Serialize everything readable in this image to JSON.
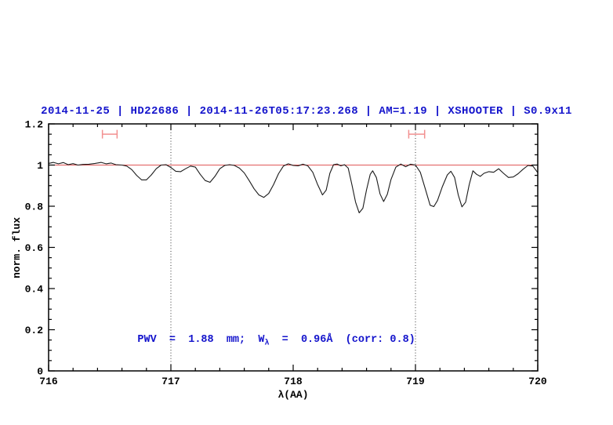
{
  "colors": {
    "accent_blue": "#1414cc",
    "continuum_red": "#e05858",
    "marker_salmon": "#f29090",
    "curve_black": "#1b1b1b"
  },
  "chart_data": {
    "type": "line",
    "title": "2014-11-25 | HD22686 | 2014-11-26T05:17:23.268 | AM=1.19 | XSHOOTER | S0.9x11",
    "xlabel": "λ(AA)",
    "ylabel": "norm. flux",
    "xlim": [
      716,
      720
    ],
    "ylim": [
      0,
      1.2
    ],
    "x_major_ticks": [
      716,
      717,
      718,
      719,
      720
    ],
    "x_major_labels": [
      "716",
      "717",
      "718",
      "719",
      "720"
    ],
    "x_minor_step": 0.2,
    "y_major_ticks": [
      0,
      0.2,
      0.4,
      0.6,
      0.8,
      1.0,
      1.2
    ],
    "y_major_labels": [
      "0",
      "0.2",
      "0.4",
      "0.6",
      "0.8",
      "1",
      "1.2"
    ],
    "y_minor_step": 0.05,
    "grid": false,
    "legend": false,
    "reference_line": {
      "y": 1.0,
      "color": "#e05858"
    },
    "dotted_lines_x": [
      717,
      719
    ],
    "band_markers": [
      {
        "x_center": 716.5,
        "half_width": 0.06,
        "y": 1.15,
        "color": "#f29090"
      },
      {
        "x_center": 719.01,
        "half_width": 0.065,
        "y": 1.15,
        "color": "#f29090"
      }
    ],
    "annotation": {
      "pre": "PWV  =  1.88  mm;  W",
      "sub": "λ",
      "post": "  =  0.96Å  (corr: 0.8)",
      "x": 716.52,
      "y": 0.2,
      "color": "#1414cc"
    },
    "series": [
      {
        "name": "spectrum",
        "color": "#1b1b1b",
        "points": [
          [
            716.0,
            1.008
          ],
          [
            716.04,
            1.013
          ],
          [
            716.08,
            1.006
          ],
          [
            716.12,
            1.012
          ],
          [
            716.16,
            1.002
          ],
          [
            716.2,
            1.007
          ],
          [
            716.24,
            1.0
          ],
          [
            716.28,
            1.003
          ],
          [
            716.33,
            1.004
          ],
          [
            716.38,
            1.008
          ],
          [
            716.43,
            1.013
          ],
          [
            716.47,
            1.006
          ],
          [
            716.51,
            1.01
          ],
          [
            716.55,
            1.002
          ],
          [
            716.6,
            1.0
          ],
          [
            716.64,
            0.995
          ],
          [
            716.68,
            0.978
          ],
          [
            716.72,
            0.95
          ],
          [
            716.76,
            0.928
          ],
          [
            716.8,
            0.928
          ],
          [
            716.84,
            0.952
          ],
          [
            716.88,
            0.982
          ],
          [
            716.92,
            1.0
          ],
          [
            716.96,
            1.002
          ],
          [
            717.0,
            0.988
          ],
          [
            717.04,
            0.97
          ],
          [
            717.08,
            0.968
          ],
          [
            717.12,
            0.982
          ],
          [
            717.16,
            0.995
          ],
          [
            717.2,
            0.99
          ],
          [
            717.24,
            0.955
          ],
          [
            717.28,
            0.925
          ],
          [
            717.32,
            0.916
          ],
          [
            717.36,
            0.945
          ],
          [
            717.4,
            0.982
          ],
          [
            717.44,
            0.998
          ],
          [
            717.48,
            1.002
          ],
          [
            717.52,
            0.998
          ],
          [
            717.56,
            0.985
          ],
          [
            717.6,
            0.962
          ],
          [
            717.64,
            0.925
          ],
          [
            717.68,
            0.885
          ],
          [
            717.72,
            0.855
          ],
          [
            717.76,
            0.843
          ],
          [
            717.8,
            0.862
          ],
          [
            717.84,
            0.905
          ],
          [
            717.88,
            0.958
          ],
          [
            717.92,
            0.995
          ],
          [
            717.96,
            1.006
          ],
          [
            718.0,
            0.998
          ],
          [
            718.04,
            0.996
          ],
          [
            718.08,
            1.004
          ],
          [
            718.12,
            0.996
          ],
          [
            718.16,
            0.965
          ],
          [
            718.2,
            0.905
          ],
          [
            718.24,
            0.855
          ],
          [
            718.27,
            0.878
          ],
          [
            718.3,
            0.96
          ],
          [
            718.33,
            1.002
          ],
          [
            718.36,
            1.005
          ],
          [
            718.39,
            0.996
          ],
          [
            718.42,
            1.002
          ],
          [
            718.45,
            0.985
          ],
          [
            718.48,
            0.905
          ],
          [
            718.51,
            0.82
          ],
          [
            718.54,
            0.768
          ],
          [
            718.57,
            0.79
          ],
          [
            718.6,
            0.88
          ],
          [
            718.63,
            0.955
          ],
          [
            718.65,
            0.972
          ],
          [
            718.68,
            0.94
          ],
          [
            718.71,
            0.86
          ],
          [
            718.74,
            0.823
          ],
          [
            718.77,
            0.858
          ],
          [
            718.8,
            0.93
          ],
          [
            718.84,
            0.99
          ],
          [
            718.88,
            1.005
          ],
          [
            718.92,
            0.992
          ],
          [
            718.96,
            1.004
          ],
          [
            719.0,
            1.0
          ],
          [
            719.04,
            0.965
          ],
          [
            719.08,
            0.885
          ],
          [
            719.12,
            0.805
          ],
          [
            719.15,
            0.798
          ],
          [
            719.18,
            0.828
          ],
          [
            719.22,
            0.895
          ],
          [
            719.26,
            0.952
          ],
          [
            719.29,
            0.97
          ],
          [
            719.32,
            0.94
          ],
          [
            719.35,
            0.855
          ],
          [
            719.38,
            0.797
          ],
          [
            719.41,
            0.82
          ],
          [
            719.44,
            0.905
          ],
          [
            719.47,
            0.972
          ],
          [
            719.5,
            0.955
          ],
          [
            719.53,
            0.945
          ],
          [
            719.56,
            0.96
          ],
          [
            719.6,
            0.968
          ],
          [
            719.64,
            0.965
          ],
          [
            719.68,
            0.982
          ],
          [
            719.72,
            0.96
          ],
          [
            719.76,
            0.94
          ],
          [
            719.8,
            0.942
          ],
          [
            719.84,
            0.958
          ],
          [
            719.88,
            0.98
          ],
          [
            719.92,
            0.998
          ],
          [
            719.96,
            0.995
          ],
          [
            720.0,
            0.963
          ]
        ]
      }
    ]
  }
}
